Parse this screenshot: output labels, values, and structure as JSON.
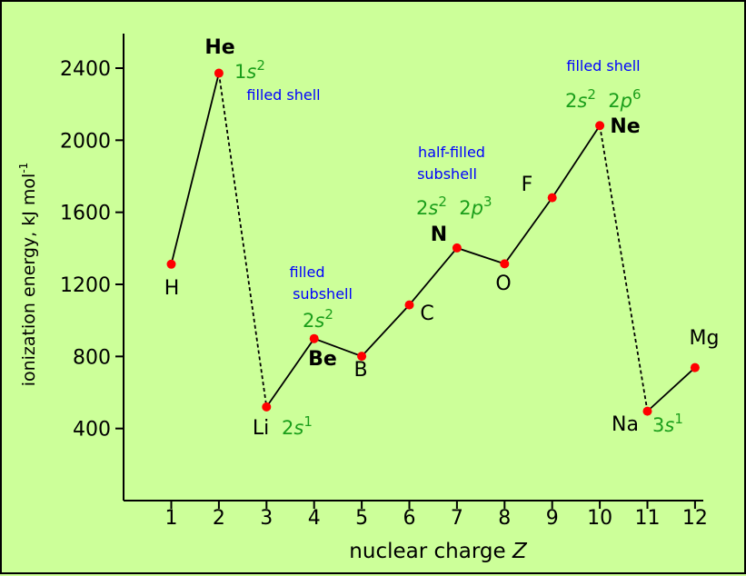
{
  "chart_data": {
    "type": "line",
    "xlabel": "nuclear charge",
    "xlabel_var": "Z",
    "ylabel": "ionization energy, kJ mol",
    "ylabel_unit_exp": "-1",
    "x_ticks": [
      1,
      2,
      3,
      4,
      5,
      6,
      7,
      8,
      9,
      10,
      11,
      12
    ],
    "y_ticks": [
      400,
      800,
      1200,
      1600,
      2000,
      2400
    ],
    "xlim": [
      0,
      12.1
    ],
    "ylim": [
      0,
      2600
    ],
    "grid": false,
    "points": [
      {
        "z": 1,
        "symbol": "H",
        "value": 1312,
        "bold": false
      },
      {
        "z": 2,
        "symbol": "He",
        "value": 2372,
        "bold": true
      },
      {
        "z": 3,
        "symbol": "Li",
        "value": 520,
        "bold": false
      },
      {
        "z": 4,
        "symbol": "Be",
        "value": 899,
        "bold": true
      },
      {
        "z": 5,
        "symbol": "B",
        "value": 801,
        "bold": false
      },
      {
        "z": 6,
        "symbol": "C",
        "value": 1086,
        "bold": false
      },
      {
        "z": 7,
        "symbol": "N",
        "value": 1402,
        "bold": true
      },
      {
        "z": 8,
        "symbol": "O",
        "value": 1314,
        "bold": false
      },
      {
        "z": 9,
        "symbol": "F",
        "value": 1681,
        "bold": false
      },
      {
        "z": 10,
        "symbol": "Ne",
        "value": 2081,
        "bold": true
      },
      {
        "z": 11,
        "symbol": "Na",
        "value": 496,
        "bold": false
      },
      {
        "z": 12,
        "symbol": "Mg",
        "value": 738,
        "bold": false
      }
    ],
    "segments": [
      {
        "from": 1,
        "to": 2,
        "style": "solid"
      },
      {
        "from": 2,
        "to": 3,
        "style": "dashed"
      },
      {
        "from": 3,
        "to": 4,
        "style": "solid"
      },
      {
        "from": 4,
        "to": 5,
        "style": "solid"
      },
      {
        "from": 5,
        "to": 6,
        "style": "solid"
      },
      {
        "from": 6,
        "to": 7,
        "style": "solid"
      },
      {
        "from": 7,
        "to": 8,
        "style": "solid"
      },
      {
        "from": 8,
        "to": 9,
        "style": "solid"
      },
      {
        "from": 9,
        "to": 10,
        "style": "solid"
      },
      {
        "from": 10,
        "to": 11,
        "style": "dashed"
      },
      {
        "from": 11,
        "to": 12,
        "style": "solid"
      }
    ],
    "annotations": {
      "he_config": "1s2",
      "he_note": "filled shell",
      "li_config": "2s1",
      "be_note_1": "filled",
      "be_note_2": "subshell",
      "be_config": "2s2",
      "n_note_1": "half-filled",
      "n_note_2": "subshell",
      "n_config": "2s2 2p3",
      "ne_note": "filled shell",
      "ne_config": "2s2 2p6",
      "na_config": "3s1"
    },
    "colors": {
      "background": "#ccff99",
      "point": "#ff0000",
      "line": "#000000",
      "note": "#0000ff",
      "config": "#1a9e1a"
    }
  }
}
